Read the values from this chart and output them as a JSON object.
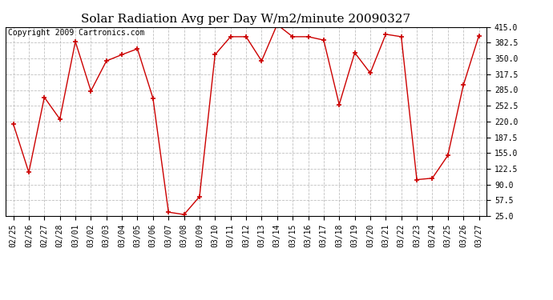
{
  "title": "Solar Radiation Avg per Day W/m2/minute 20090327",
  "copyright": "Copyright 2009 Cartronics.com",
  "labels": [
    "02/25",
    "02/26",
    "02/27",
    "02/28",
    "03/01",
    "03/02",
    "03/03",
    "03/04",
    "03/05",
    "03/06",
    "03/07",
    "03/08",
    "03/09",
    "03/10",
    "03/11",
    "03/12",
    "03/13",
    "03/14",
    "03/15",
    "03/16",
    "03/17",
    "03/18",
    "03/19",
    "03/20",
    "03/21",
    "03/22",
    "03/23",
    "03/24",
    "03/25",
    "03/26",
    "03/27"
  ],
  "values": [
    215,
    115,
    270,
    225,
    385,
    283,
    345,
    358,
    370,
    268,
    33,
    28,
    65,
    358,
    395,
    395,
    345,
    420,
    395,
    395,
    388,
    255,
    362,
    320,
    400,
    395,
    100,
    103,
    150,
    295,
    397
  ],
  "line_color": "#cc0000",
  "marker": "+",
  "bg_color": "#ffffff",
  "plot_bg_color": "#ffffff",
  "grid_color": "#b0b0b0",
  "ylim": [
    25.0,
    415.0
  ],
  "yticks": [
    25.0,
    57.5,
    90.0,
    122.5,
    155.0,
    187.5,
    220.0,
    252.5,
    285.0,
    317.5,
    350.0,
    382.5,
    415.0
  ],
  "title_fontsize": 11,
  "copyright_fontsize": 7,
  "tick_fontsize": 7
}
